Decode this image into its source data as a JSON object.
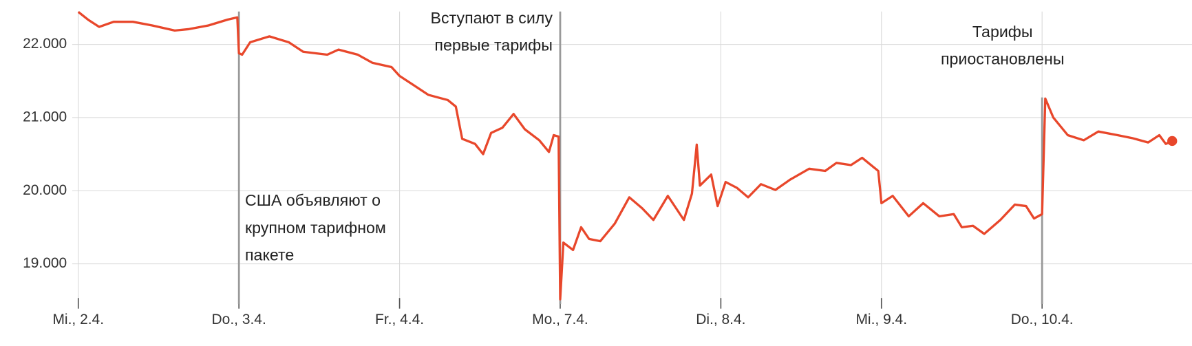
{
  "chart_data": {
    "type": "line",
    "color": "#e8472b",
    "grid": true,
    "xlim": [
      0,
      6.93
    ],
    "ylim": [
      18450,
      22450
    ],
    "xticks": [
      {
        "value": 0,
        "label": "Mi., 2.4."
      },
      {
        "value": 1,
        "label": "Do., 3.4."
      },
      {
        "value": 2,
        "label": "Fr., 4.4."
      },
      {
        "value": 3,
        "label": "Mo., 7.4."
      },
      {
        "value": 4,
        "label": "Di., 8.4."
      },
      {
        "value": 5,
        "label": "Mi., 9.4."
      },
      {
        "value": 6,
        "label": "Do., 10.4."
      }
    ],
    "yticks": [
      {
        "value": 19000,
        "label": "19.000"
      },
      {
        "value": 20000,
        "label": "20.000"
      },
      {
        "value": 21000,
        "label": "21.000"
      },
      {
        "value": 22000,
        "label": "22.000"
      }
    ],
    "annotations": [
      {
        "x": 1,
        "lines": [
          "США объявляют о",
          "крупном тарифном",
          "пакете"
        ]
      },
      {
        "x": 3,
        "lines": [
          "Вступают в силу",
          "первые тарифы"
        ]
      },
      {
        "x": 6,
        "lines": [
          "Тарифы",
          "приостановлены"
        ]
      }
    ],
    "x": [
      0,
      0.06,
      0.13,
      0.22,
      0.34,
      0.46,
      0.6,
      0.69,
      0.81,
      0.93,
      0.99,
      1.0,
      1.02,
      1.07,
      1.19,
      1.31,
      1.4,
      1.55,
      1.62,
      1.74,
      1.83,
      1.95,
      2.0,
      2.09,
      2.18,
      2.3,
      2.35,
      2.39,
      2.47,
      2.52,
      2.57,
      2.64,
      2.71,
      2.78,
      2.87,
      2.93,
      2.96,
      2.99,
      3.0,
      3.02,
      3.08,
      3.13,
      3.18,
      3.25,
      3.34,
      3.43,
      3.51,
      3.58,
      3.67,
      3.77,
      3.82,
      3.85,
      3.87,
      3.94,
      3.98,
      4.03,
      4.1,
      4.17,
      4.25,
      4.34,
      4.43,
      4.55,
      4.65,
      4.72,
      4.81,
      4.88,
      4.98,
      5.0,
      5.07,
      5.17,
      5.26,
      5.36,
      5.45,
      5.5,
      5.57,
      5.64,
      5.74,
      5.83,
      5.9,
      5.95,
      6.0,
      6.02,
      6.07,
      6.16,
      6.26,
      6.35,
      6.47,
      6.56,
      6.66,
      6.73,
      6.77,
      6.81
    ],
    "values": [
      22445,
      22340,
      22240,
      22310,
      22310,
      22260,
      22190,
      22210,
      22260,
      22340,
      22370,
      21880,
      21860,
      22030,
      22110,
      22030,
      21900,
      21860,
      21930,
      21860,
      21750,
      21690,
      21570,
      21440,
      21310,
      21240,
      21150,
      20710,
      20640,
      20500,
      20790,
      20860,
      21050,
      20840,
      20690,
      20530,
      20760,
      20740,
      18515,
      19290,
      19190,
      19500,
      19340,
      19310,
      19550,
      19910,
      19760,
      19600,
      19930,
      19600,
      19960,
      20630,
      20070,
      20220,
      19790,
      20120,
      20040,
      19910,
      20090,
      20010,
      20150,
      20300,
      20270,
      20380,
      20350,
      20450,
      20270,
      19830,
      19930,
      19650,
      19830,
      19650,
      19680,
      19500,
      19520,
      19410,
      19600,
      19810,
      19790,
      19620,
      19680,
      21260,
      21000,
      20760,
      20690,
      20810,
      20760,
      20720,
      20660,
      20760,
      20640,
      20680
    ]
  }
}
